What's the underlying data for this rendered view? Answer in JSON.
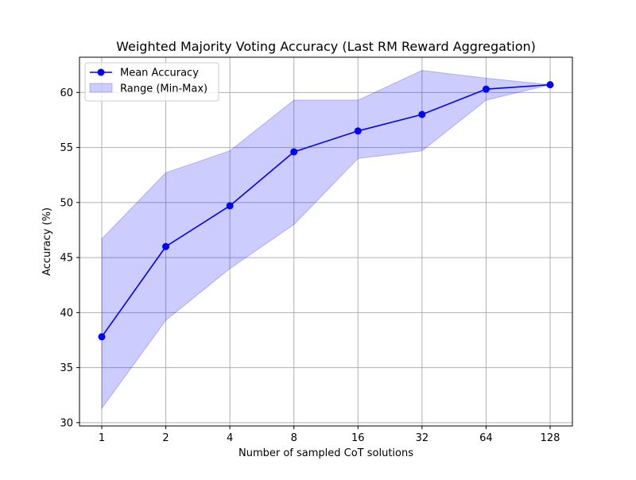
{
  "chart_data": {
    "type": "line",
    "title": "Weighted Majority Voting Accuracy (Last RM Reward Aggregation)",
    "xlabel": "Number of sampled CoT solutions",
    "ylabel": "Accuracy (%)",
    "x": [
      1,
      2,
      4,
      8,
      16,
      32,
      64,
      128
    ],
    "x_tick_labels": [
      "1",
      "2",
      "4",
      "8",
      "16",
      "32",
      "64",
      "128"
    ],
    "x_scale": "log2",
    "y_ticks": [
      30,
      35,
      40,
      45,
      50,
      55,
      60
    ],
    "y_tick_labels": [
      "30",
      "35",
      "40",
      "45",
      "50",
      "55",
      "60"
    ],
    "ylim": [
      29.7,
      63.2
    ],
    "grid": true,
    "legend_position": "top-left",
    "series": [
      {
        "name": "Mean Accuracy",
        "kind": "line-marker",
        "color": "#0000ff",
        "values": [
          37.8,
          46.0,
          49.7,
          54.6,
          56.5,
          58.0,
          60.3,
          60.7
        ]
      }
    ],
    "band": {
      "name": "Range (Min-Max)",
      "color": "#0000ff",
      "opacity": 0.2,
      "min": [
        31.3,
        39.3,
        44.0,
        48.0,
        54.0,
        54.7,
        59.3,
        60.7
      ],
      "max": [
        46.7,
        52.7,
        54.7,
        59.3,
        59.3,
        62.0,
        61.3,
        60.7
      ]
    }
  }
}
